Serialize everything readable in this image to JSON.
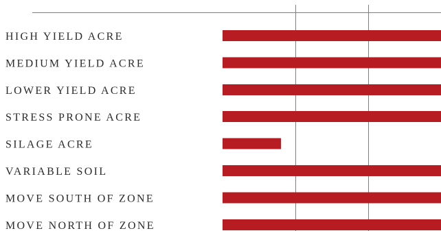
{
  "chart_data": {
    "type": "bar",
    "orientation": "horizontal",
    "categories": [
      "HIGH YIELD ACRE",
      "MEDIUM YIELD ACRE",
      "LOWER YIELD ACRE",
      "STRESS PRONE ACRE",
      "SILAGE ACRE",
      "VARIABLE SOIL",
      "MOVE SOUTH OF ZONE",
      "MOVE NORTH OF ZONE"
    ],
    "values": [
      3,
      3,
      3,
      3,
      0.8,
      3,
      3,
      3
    ],
    "xlim": [
      0,
      3
    ],
    "x_gridlines": [
      1,
      2
    ],
    "bar_color": "#b71c22",
    "gridline_color": "#7f7f7f",
    "legend": "none"
  }
}
